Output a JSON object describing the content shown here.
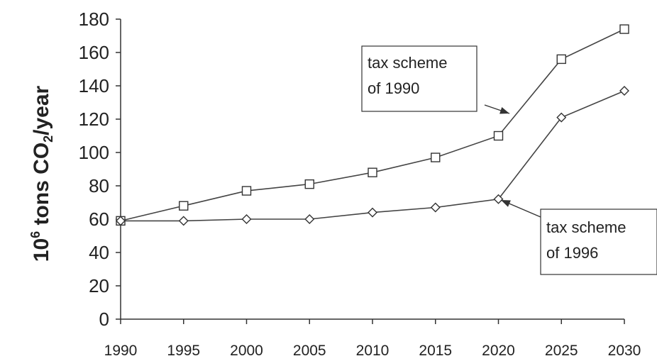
{
  "chart_data": {
    "type": "line",
    "title": "",
    "xlabel": "",
    "ylabel": {
      "base": "10",
      "exponent": "6",
      "text": " tons CO",
      "subscript": "2",
      "suffix": "/year"
    },
    "x": [
      1990,
      1995,
      2000,
      2005,
      2010,
      2015,
      2020,
      2025,
      2030
    ],
    "xlim": [
      1990,
      2030
    ],
    "ylim": [
      0,
      180
    ],
    "yticks": [
      0,
      20,
      40,
      60,
      80,
      100,
      120,
      140,
      160,
      180
    ],
    "grid": false,
    "legend": "none",
    "series": [
      {
        "name": "tax scheme of 1990",
        "marker": "square",
        "values": [
          59,
          68,
          77,
          81,
          88,
          97,
          110,
          156,
          174
        ]
      },
      {
        "name": "tax scheme of 1996",
        "marker": "diamond",
        "values": [
          59,
          59,
          60,
          60,
          64,
          67,
          72,
          121,
          137
        ]
      }
    ],
    "annotations": [
      {
        "lines": [
          "tax scheme",
          "of 1990"
        ],
        "series": 0,
        "points_to_x": 2020
      },
      {
        "lines": [
          "tax scheme",
          "of 1996"
        ],
        "series": 1,
        "points_to_x": 2020
      }
    ]
  }
}
